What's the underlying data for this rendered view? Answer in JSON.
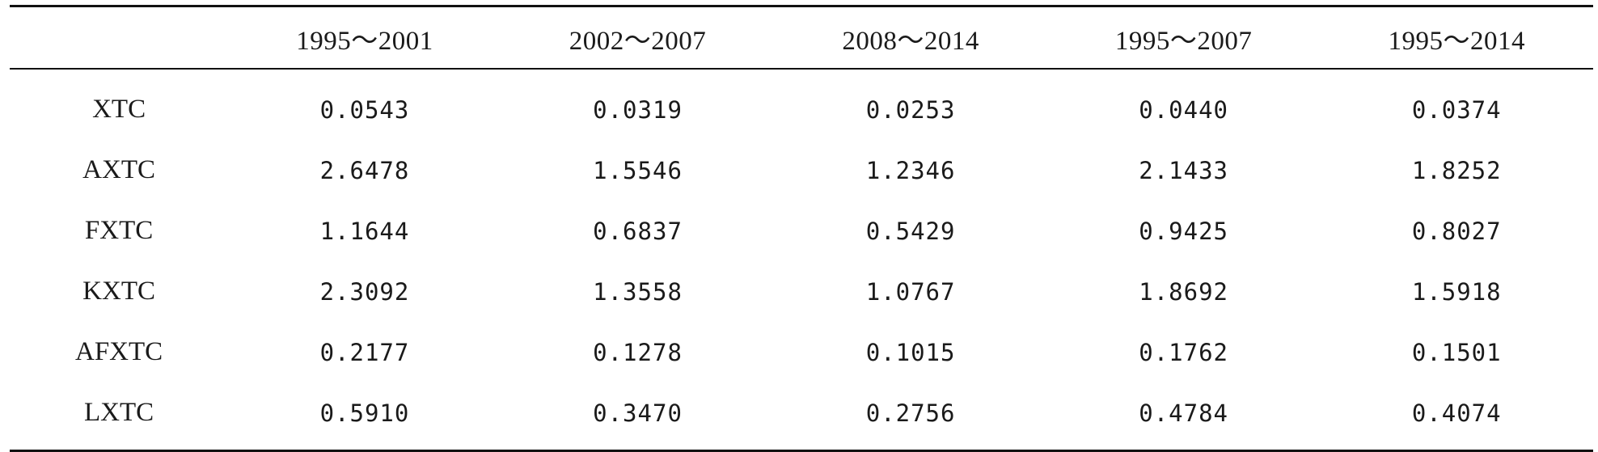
{
  "table": {
    "headers": [
      "",
      "1995～2001",
      "2002～2007",
      "2008～2014",
      "1995～2007",
      "1995～2014"
    ],
    "rows": [
      {
        "label": "XTC",
        "values": [
          "0.0543",
          "0.0319",
          "0.0253",
          "0.0440",
          "0.0374"
        ]
      },
      {
        "label": "AXTC",
        "values": [
          "2.6478",
          "1.5546",
          "1.2346",
          "2.1433",
          "1.8252"
        ]
      },
      {
        "label": "FXTC",
        "values": [
          "1.1644",
          "0.6837",
          "0.5429",
          "0.9425",
          "0.8027"
        ]
      },
      {
        "label": "KXTC",
        "values": [
          "2.3092",
          "1.3558",
          "1.0767",
          "1.8692",
          "1.5918"
        ]
      },
      {
        "label": "AFXTC",
        "values": [
          "0.2177",
          "0.1278",
          "0.1015",
          "0.1762",
          "0.1501"
        ]
      },
      {
        "label": "LXTC",
        "values": [
          "0.5910",
          "0.3470",
          "0.2756",
          "0.4784",
          "0.4074"
        ]
      }
    ]
  }
}
